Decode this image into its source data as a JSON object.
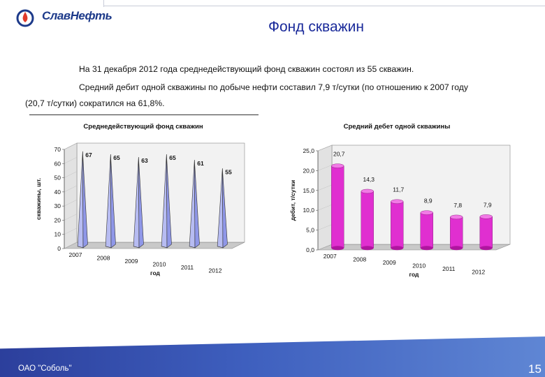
{
  "header": {
    "logo_text": "СлавНефть",
    "title": "Фонд скважин"
  },
  "body": {
    "paragraph1": "На 31 декабря 2012 года среднедействующий фонд скважин состоял из 55 скважин.",
    "paragraph2_line1": "Средний дебит одной скважины по добыче нефти составил 7,9 т/сутки (по отношению к 2007 году",
    "paragraph2_line2": "(20,7 т/сутки) сократился на 61,8%."
  },
  "footer": {
    "company": "ОАО \"Соболь\"",
    "page_number": "15"
  },
  "chart_data": [
    {
      "type": "bar",
      "title": "Среднедействующий фонд скважин",
      "xlabel": "год",
      "ylabel": "скважины, шт.",
      "categories": [
        "2007",
        "2008",
        "2009",
        "2010",
        "2011",
        "2012"
      ],
      "values": [
        67,
        65,
        63,
        65,
        61,
        55
      ],
      "value_labels": [
        "67",
        "65",
        "63",
        "65",
        "61",
        "55"
      ],
      "ylim": [
        0,
        70
      ],
      "yticks": [
        "0",
        "10",
        "20",
        "30",
        "40",
        "50",
        "60",
        "70"
      ],
      "color": "#8f97e8",
      "shape": "pyramid"
    },
    {
      "type": "bar",
      "title": "Средний дебет одной скважины",
      "xlabel": "год",
      "ylabel": "дебит, т/сутки",
      "categories": [
        "2007",
        "2008",
        "2009",
        "2010",
        "2011",
        "2012"
      ],
      "values": [
        20.7,
        14.3,
        11.7,
        8.9,
        7.8,
        7.9
      ],
      "value_labels": [
        "20,7",
        "14,3",
        "11,7",
        "8,9",
        "7,8",
        "7,9"
      ],
      "ylim": [
        0,
        25
      ],
      "yticks": [
        "0,0",
        "5,0",
        "10,0",
        "15,0",
        "20,0",
        "25,0"
      ],
      "color": "#e02fd0",
      "shape": "cylinder"
    }
  ]
}
